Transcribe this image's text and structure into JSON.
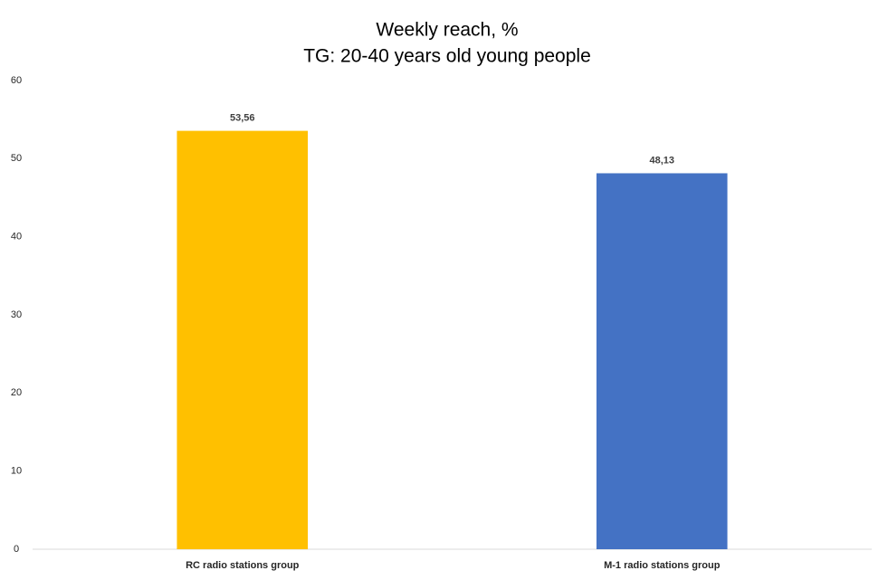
{
  "chart_data": {
    "type": "bar",
    "title": "Weekly reach, %",
    "subtitle": "TG: 20-40 years old young people",
    "categories": [
      "RC radio stations group",
      "M-1 radio stations group"
    ],
    "values": [
      53.56,
      48.13
    ],
    "value_labels": [
      "53,56",
      "48,13"
    ],
    "colors": [
      "#ffc000",
      "#4472c4"
    ],
    "ylim": [
      0,
      60
    ],
    "yticks": [
      0,
      10,
      20,
      30,
      40,
      50,
      60
    ],
    "grid": false
  }
}
